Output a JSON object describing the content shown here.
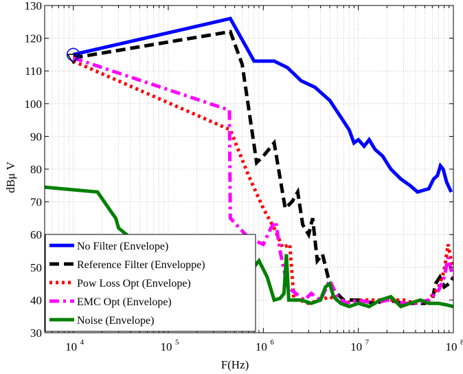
{
  "chart_data": {
    "type": "line",
    "title": "",
    "xlabel": "F(Hz)",
    "ylabel": "dBμ V",
    "x_scale": "log",
    "xlim": [
      5000,
      100000000
    ],
    "ylim": [
      30,
      130
    ],
    "x_ticks": [
      {
        "base": "10",
        "exp": "4",
        "value": 10000
      },
      {
        "base": "10",
        "exp": "5",
        "value": 100000
      },
      {
        "base": "10",
        "exp": "6",
        "value": 1000000
      },
      {
        "base": "10",
        "exp": "7",
        "value": 10000000
      },
      {
        "base": "10",
        "exp": "8",
        "value": 100000000
      }
    ],
    "y_ticks": [
      "30",
      "40",
      "50",
      "60",
      "70",
      "80",
      "90",
      "100",
      "110",
      "120",
      "130"
    ],
    "grid": true,
    "legend_position": "bottom-left",
    "series": [
      {
        "name": "No Filter (Envelope)",
        "color": "#0000ff",
        "style": "solid",
        "marker": "circle",
        "points": [
          [
            10000,
            115
          ],
          [
            450000,
            126
          ],
          [
            800000,
            113
          ],
          [
            1300000,
            113
          ],
          [
            1800000,
            111
          ],
          [
            2500000,
            107
          ],
          [
            3500000,
            105
          ],
          [
            5000000,
            101
          ],
          [
            6500000,
            96
          ],
          [
            8000000,
            92
          ],
          [
            9000000,
            88
          ],
          [
            10000000,
            89
          ],
          [
            11500000,
            87
          ],
          [
            13000000,
            89
          ],
          [
            15000000,
            86
          ],
          [
            18000000,
            84
          ],
          [
            22000000,
            80
          ],
          [
            28000000,
            77
          ],
          [
            35000000,
            75
          ],
          [
            42000000,
            73
          ],
          [
            48000000,
            73.5
          ],
          [
            55000000,
            74
          ],
          [
            62000000,
            77
          ],
          [
            68000000,
            78
          ],
          [
            73000000,
            81
          ],
          [
            78000000,
            80
          ],
          [
            85000000,
            76
          ],
          [
            95000000,
            73
          ]
        ]
      },
      {
        "name": "Reference Filter (Enveloppe)",
        "color": "#000000",
        "style": "dashed",
        "marker": "triangle",
        "points": [
          [
            10000,
            114
          ],
          [
            450000,
            122
          ],
          [
            600000,
            112
          ],
          [
            850000,
            82
          ],
          [
            1000000,
            84
          ],
          [
            1300000,
            88
          ],
          [
            1700000,
            68
          ],
          [
            2000000,
            70
          ],
          [
            2300000,
            73
          ],
          [
            2600000,
            63
          ],
          [
            3000000,
            60
          ],
          [
            3300000,
            65
          ],
          [
            3700000,
            52
          ],
          [
            4200000,
            54
          ],
          [
            4800000,
            47
          ],
          [
            5500000,
            43
          ],
          [
            7000000,
            40
          ],
          [
            10000000,
            40
          ],
          [
            15000000,
            39
          ],
          [
            20000000,
            40
          ],
          [
            30000000,
            39
          ],
          [
            40000000,
            39
          ],
          [
            50000000,
            39
          ],
          [
            60000000,
            40
          ],
          [
            65000000,
            45
          ],
          [
            72000000,
            47
          ],
          [
            80000000,
            44
          ],
          [
            90000000,
            45
          ],
          [
            100000000,
            47
          ]
        ]
      },
      {
        "name": "Pow Loss Opt (Envelope)",
        "color": "#ff0000",
        "style": "dotted",
        "marker": "none",
        "points": [
          [
            10000,
            113
          ],
          [
            450000,
            92
          ],
          [
            700000,
            78
          ],
          [
            1000000,
            68
          ],
          [
            1300000,
            62
          ],
          [
            1600000,
            56
          ],
          [
            1900000,
            57
          ],
          [
            2100000,
            40
          ],
          [
            2400000,
            40
          ],
          [
            3000000,
            39
          ],
          [
            4000000,
            40
          ],
          [
            5000000,
            41
          ],
          [
            7000000,
            39
          ],
          [
            10000000,
            40
          ],
          [
            15000000,
            40
          ],
          [
            20000000,
            40
          ],
          [
            30000000,
            40
          ],
          [
            40000000,
            39
          ],
          [
            55000000,
            40
          ],
          [
            70000000,
            44
          ],
          [
            80000000,
            49
          ],
          [
            88000000,
            57
          ],
          [
            95000000,
            52
          ],
          [
            100000000,
            50
          ]
        ]
      },
      {
        "name": "EMC Opt (Envelope)",
        "color": "#ff00ff",
        "style": "dashdot",
        "marker": "none",
        "points": [
          [
            10000,
            114
          ],
          [
            440000,
            98
          ],
          [
            450000,
            65
          ],
          [
            700000,
            59
          ],
          [
            1000000,
            57
          ],
          [
            1200000,
            62
          ],
          [
            1350000,
            64
          ],
          [
            1500000,
            55
          ],
          [
            1800000,
            44
          ],
          [
            2200000,
            42
          ],
          [
            2700000,
            40
          ],
          [
            3200000,
            42
          ],
          [
            4000000,
            40
          ],
          [
            5000000,
            46
          ],
          [
            6000000,
            41
          ],
          [
            7500000,
            39
          ],
          [
            10000000,
            40
          ],
          [
            15000000,
            39
          ],
          [
            20000000,
            40
          ],
          [
            30000000,
            39
          ],
          [
            40000000,
            39
          ],
          [
            55000000,
            40
          ],
          [
            70000000,
            43
          ],
          [
            80000000,
            47
          ],
          [
            88000000,
            53
          ],
          [
            95000000,
            49
          ],
          [
            100000000,
            47
          ]
        ]
      },
      {
        "name": "Noise (Envelope)",
        "color": "#008000",
        "style": "solid",
        "marker": "none",
        "points": [
          [
            5000,
            74.5
          ],
          [
            18000,
            73
          ],
          [
            25000,
            67
          ],
          [
            28000,
            65
          ],
          [
            30000,
            62
          ],
          [
            40000,
            59
          ],
          [
            55000,
            57
          ],
          [
            80000,
            54
          ],
          [
            150000,
            52
          ],
          [
            300000,
            50
          ],
          [
            500000,
            49
          ],
          [
            700000,
            48
          ],
          [
            900000,
            52
          ],
          [
            1100000,
            47
          ],
          [
            1300000,
            40
          ],
          [
            1500000,
            40.5
          ],
          [
            1650000,
            42
          ],
          [
            1750000,
            54
          ],
          [
            1850000,
            40
          ],
          [
            2500000,
            40
          ],
          [
            3200000,
            39
          ],
          [
            4000000,
            40
          ],
          [
            4500000,
            44
          ],
          [
            5000000,
            45
          ],
          [
            5500000,
            41
          ],
          [
            6500000,
            39
          ],
          [
            8000000,
            38
          ],
          [
            10000000,
            39
          ],
          [
            13000000,
            38
          ],
          [
            17000000,
            40
          ],
          [
            22000000,
            41
          ],
          [
            28000000,
            38
          ],
          [
            35000000,
            39
          ],
          [
            45000000,
            40
          ],
          [
            55000000,
            39
          ],
          [
            70000000,
            39
          ],
          [
            85000000,
            38.5
          ],
          [
            100000000,
            38
          ]
        ]
      }
    ]
  }
}
